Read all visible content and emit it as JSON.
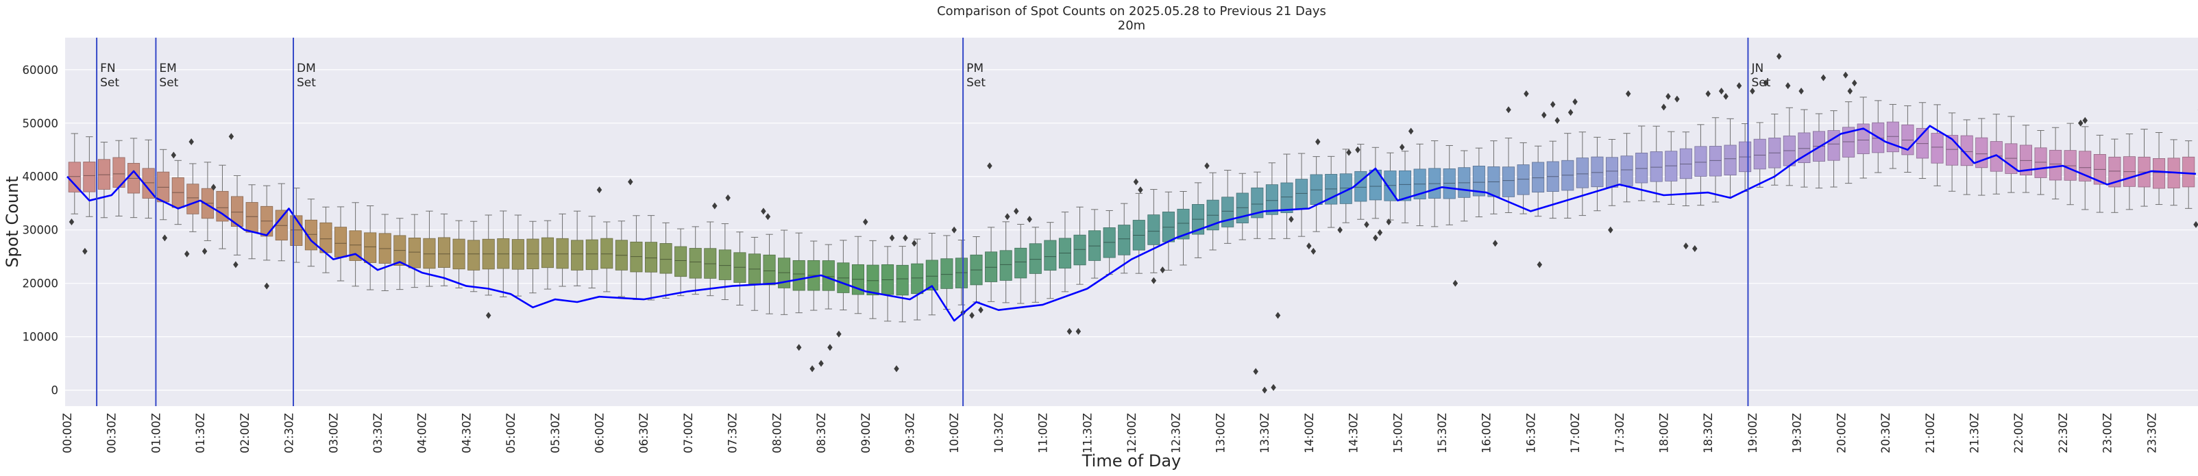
{
  "chart_data": {
    "type": "box",
    "title": "Comparison of Spot Counts on 2025.05.28 to Previous 21 Days",
    "subtitle": "20m",
    "xlabel": "Time of Day",
    "ylabel": "Spot Count",
    "ylim": [
      -3000,
      66000
    ],
    "yticks": [
      0,
      10000,
      20000,
      30000,
      40000,
      50000,
      60000
    ],
    "ytick_labels": [
      "0",
      "10000",
      "20000",
      "30000",
      "40000",
      "50000",
      "60000"
    ],
    "interval_minutes": 10,
    "xtick_labels": [
      "00:00Z",
      "00:30Z",
      "01:00Z",
      "01:30Z",
      "02:00Z",
      "02:30Z",
      "03:00Z",
      "03:30Z",
      "04:00Z",
      "04:30Z",
      "05:00Z",
      "05:30Z",
      "06:00Z",
      "06:30Z",
      "07:00Z",
      "07:30Z",
      "08:00Z",
      "08:30Z",
      "09:00Z",
      "09:30Z",
      "10:00Z",
      "10:30Z",
      "11:00Z",
      "11:30Z",
      "12:00Z",
      "12:30Z",
      "13:00Z",
      "13:30Z",
      "14:00Z",
      "14:30Z",
      "15:00Z",
      "15:30Z",
      "16:00Z",
      "16:30Z",
      "17:00Z",
      "17:30Z",
      "18:00Z",
      "18:30Z",
      "19:00Z",
      "19:30Z",
      "20:00Z",
      "20:30Z",
      "21:00Z",
      "21:30Z",
      "22:00Z",
      "22:30Z",
      "23:00Z",
      "23:30Z"
    ],
    "median_profile": {
      "hours": [
        0,
        0.5,
        1,
        1.5,
        2,
        2.5,
        3,
        4,
        5,
        6,
        7,
        8,
        9,
        9.5,
        10,
        11,
        12,
        13,
        14,
        15,
        16,
        17,
        18,
        19,
        20,
        20.5,
        21,
        22,
        23,
        24
      ],
      "medians": [
        40000,
        40500,
        38000,
        35000,
        32500,
        30000,
        27500,
        25500,
        25500,
        25500,
        24000,
        22000,
        20500,
        21000,
        22000,
        25000,
        29000,
        33500,
        37500,
        38500,
        39000,
        40500,
        42000,
        44000,
        46500,
        47500,
        45500,
        43000,
        41000,
        40500
      ],
      "iqr_half": 2800,
      "whisker_half": 7000
    },
    "current_day": {
      "name": "2025.05.28",
      "color": "#0000ff",
      "hours": [
        0,
        0.25,
        0.5,
        0.75,
        1,
        1.25,
        1.5,
        1.75,
        2,
        2.25,
        2.5,
        2.75,
        3,
        3.25,
        3.5,
        3.75,
        4,
        4.25,
        4.5,
        4.75,
        5,
        5.25,
        5.5,
        5.75,
        6,
        6.5,
        7,
        7.5,
        8,
        8.5,
        9,
        9.5,
        9.75,
        10,
        10.25,
        10.5,
        11,
        11.5,
        12,
        12.5,
        13,
        13.5,
        14,
        14.5,
        14.75,
        15,
        15.5,
        16,
        16.5,
        17,
        17.5,
        18,
        18.5,
        18.75,
        19,
        19.25,
        19.5,
        19.75,
        20,
        20.25,
        20.5,
        20.75,
        21,
        21.25,
        21.5,
        21.75,
        22,
        22.5,
        23,
        23.5,
        24
      ],
      "values": [
        40000,
        35500,
        36500,
        41000,
        36000,
        34000,
        35500,
        33000,
        30000,
        29000,
        34000,
        28000,
        24500,
        25500,
        22500,
        24000,
        22000,
        21000,
        19500,
        19000,
        18000,
        15500,
        17000,
        16500,
        17500,
        17000,
        18500,
        19500,
        20000,
        21500,
        18500,
        17000,
        19500,
        13000,
        16500,
        15000,
        16000,
        19000,
        24500,
        28500,
        31500,
        33500,
        34000,
        38000,
        41500,
        35500,
        38000,
        37000,
        33500,
        36000,
        38500,
        36500,
        37000,
        36000,
        38000,
        40000,
        43000,
        45500,
        48000,
        49000,
        46500,
        45000,
        49500,
        47000,
        42500,
        44000,
        41000,
        42000,
        38500,
        41000,
        40500
      ]
    },
    "outliers": [
      [
        0.05,
        31500
      ],
      [
        0.2,
        26000
      ],
      [
        1.1,
        28500
      ],
      [
        1.2,
        44000
      ],
      [
        1.35,
        25500
      ],
      [
        1.4,
        46500
      ],
      [
        1.55,
        26000
      ],
      [
        1.65,
        38000
      ],
      [
        1.85,
        47500
      ],
      [
        1.9,
        23500
      ],
      [
        2.25,
        19500
      ],
      [
        4.75,
        14000
      ],
      [
        6,
        37500
      ],
      [
        6.35,
        39000
      ],
      [
        7.3,
        34500
      ],
      [
        7.45,
        36000
      ],
      [
        7.85,
        33500
      ],
      [
        7.9,
        32500
      ],
      [
        8.25,
        8000
      ],
      [
        8.4,
        4000
      ],
      [
        8.5,
        5000
      ],
      [
        8.6,
        8000
      ],
      [
        8.7,
        10500
      ],
      [
        9.0,
        31500
      ],
      [
        9.3,
        28500
      ],
      [
        9.35,
        4000
      ],
      [
        9.45,
        28500
      ],
      [
        9.55,
        27500
      ],
      [
        10.0,
        30000
      ],
      [
        10.1,
        14500
      ],
      [
        10.2,
        14000
      ],
      [
        10.3,
        15000
      ],
      [
        10.4,
        42000
      ],
      [
        10.6,
        32500
      ],
      [
        10.7,
        33500
      ],
      [
        10.85,
        32000
      ],
      [
        11.3,
        11000
      ],
      [
        11.4,
        11000
      ],
      [
        12.05,
        39000
      ],
      [
        12.1,
        37500
      ],
      [
        12.25,
        20500
      ],
      [
        12.35,
        22500
      ],
      [
        12.85,
        42000
      ],
      [
        13.4,
        3500
      ],
      [
        13.5,
        0
      ],
      [
        13.6,
        500
      ],
      [
        13.65,
        14000
      ],
      [
        13.8,
        32000
      ],
      [
        14.0,
        27000
      ],
      [
        14.05,
        26000
      ],
      [
        14.1,
        46500
      ],
      [
        14.35,
        30000
      ],
      [
        14.45,
        44500
      ],
      [
        14.55,
        45000
      ],
      [
        14.65,
        31000
      ],
      [
        14.75,
        28500
      ],
      [
        14.8,
        29500
      ],
      [
        14.9,
        31500
      ],
      [
        15.05,
        45500
      ],
      [
        15.15,
        48500
      ],
      [
        15.65,
        20000
      ],
      [
        16.1,
        27500
      ],
      [
        16.25,
        52500
      ],
      [
        16.45,
        55500
      ],
      [
        16.6,
        23500
      ],
      [
        16.65,
        51500
      ],
      [
        16.75,
        53500
      ],
      [
        16.8,
        50500
      ],
      [
        16.95,
        52000
      ],
      [
        17.0,
        54000
      ],
      [
        17.4,
        30000
      ],
      [
        17.6,
        55500
      ],
      [
        18.0,
        53000
      ],
      [
        18.05,
        55000
      ],
      [
        18.15,
        54500
      ],
      [
        18.25,
        27000
      ],
      [
        18.35,
        26500
      ],
      [
        18.5,
        55500
      ],
      [
        18.65,
        56000
      ],
      [
        18.7,
        55000
      ],
      [
        18.85,
        57000
      ],
      [
        19.0,
        56000
      ],
      [
        19.15,
        57500
      ],
      [
        19.3,
        62500
      ],
      [
        19.4,
        57000
      ],
      [
        19.55,
        56000
      ],
      [
        19.8,
        58500
      ],
      [
        20.05,
        59000
      ],
      [
        20.1,
        56000
      ],
      [
        20.15,
        57500
      ],
      [
        22.7,
        50000
      ],
      [
        22.75,
        50500
      ],
      [
        24.0,
        31000
      ],
      [
        24.05,
        52500
      ]
    ],
    "event_markers": [
      {
        "hour": 0.333,
        "label_line1": "FN",
        "label_line2": "Set"
      },
      {
        "hour": 1.0,
        "label_line1": "EM",
        "label_line2": "Set"
      },
      {
        "hour": 2.55,
        "label_line1": "DM",
        "label_line2": "Set"
      },
      {
        "hour": 10.1,
        "label_line1": "PM",
        "label_line2": "Set"
      },
      {
        "hour": 18.95,
        "label_line1": "JN",
        "label_line2": "Set"
      }
    ],
    "colors": {
      "background": "#eaeaf2",
      "grid": "#ffffff",
      "marker_line": "#3548c8",
      "whisker": "#6f6f6f",
      "outlier": "#3d3d3d",
      "palette": [
        "#cf8e8e",
        "#b79262",
        "#90985c",
        "#5f9e64",
        "#5c9c92",
        "#6a9fc4",
        "#a49fd8",
        "#c694cc",
        "#d18fac"
      ]
    }
  }
}
